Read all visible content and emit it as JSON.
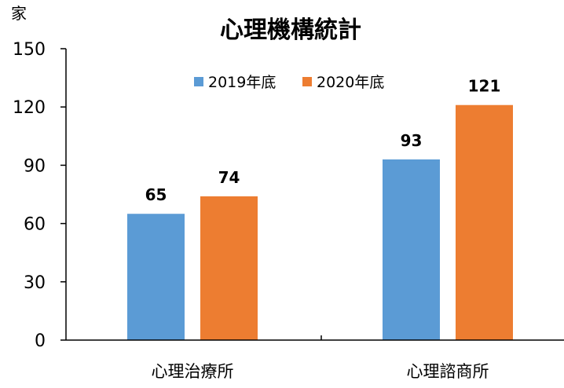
{
  "chart_data": {
    "type": "bar",
    "title": "心理機構統計",
    "ylabel": "家",
    "xlabel": "",
    "categories": [
      "心理治療所",
      "心理諮商所"
    ],
    "series": [
      {
        "name": "2019年底",
        "color": "#5b9bd5",
        "values": [
          65,
          93
        ]
      },
      {
        "name": "2020年底",
        "color": "#ed7d31",
        "values": [
          74,
          121
        ]
      }
    ],
    "ylim": [
      0,
      150
    ],
    "yticks": [
      "0",
      "30",
      "60",
      "90",
      "120",
      "150"
    ],
    "data_labels": [
      [
        "65",
        "93"
      ],
      [
        "74",
        "121"
      ]
    ],
    "grid": false,
    "legend_position": "top-right"
  }
}
